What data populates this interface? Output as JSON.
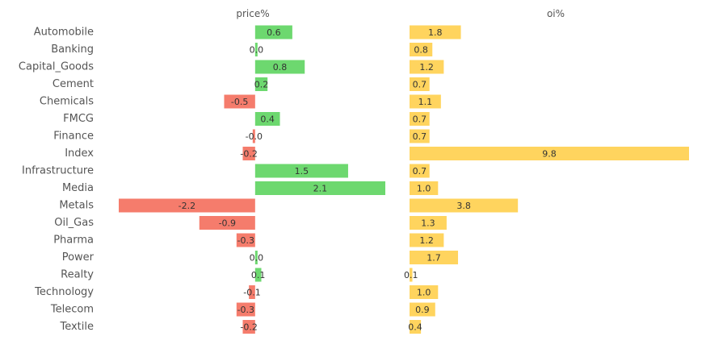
{
  "chart_data": {
    "type": "bar",
    "orientation": "horizontal",
    "categories": [
      "Automobile",
      "Banking",
      "Capital_Goods",
      "Cement",
      "Chemicals",
      "FMCG",
      "Finance",
      "Index",
      "Infrastructure",
      "Media",
      "Metals",
      "Oil_Gas",
      "Pharma",
      "Power",
      "Realty",
      "Technology",
      "Telecom",
      "Textile"
    ],
    "panels": [
      {
        "title": "price%",
        "values": [
          0.6,
          0.0,
          0.8,
          0.2,
          -0.5,
          0.4,
          -0.0,
          -0.2,
          1.5,
          2.1,
          -2.2,
          -0.9,
          -0.3,
          0.0,
          0.1,
          -0.1,
          -0.3,
          -0.2
        ],
        "value_labels": [
          "0.6",
          "0.0",
          "0.8",
          "0.2",
          "-0.5",
          "0.4",
          "-0.0",
          "-0.2",
          "1.5",
          "2.1",
          "-2.2",
          "-0.9",
          "-0.3",
          "0.0",
          "0.1",
          "-0.1",
          "-0.3",
          "-0.2"
        ],
        "positive_color": "#6dd86f",
        "negative_color": "#f57c6c",
        "xlim": [
          -2.2,
          2.1
        ]
      },
      {
        "title": "oi%",
        "values": [
          1.8,
          0.8,
          1.2,
          0.7,
          1.1,
          0.7,
          0.7,
          9.8,
          0.7,
          1.0,
          3.8,
          1.3,
          1.2,
          1.7,
          0.1,
          1.0,
          0.9,
          0.4
        ],
        "value_labels": [
          "1.8",
          "0.8",
          "1.2",
          "0.7",
          "1.1",
          "0.7",
          "0.7",
          "9.8",
          "0.7",
          "1.0",
          "3.8",
          "1.3",
          "1.2",
          "1.7",
          "0.1",
          "1.0",
          "0.9",
          "0.4"
        ],
        "color": "#ffd45e",
        "xlim": [
          0,
          9.8
        ]
      }
    ],
    "grid": false,
    "legend": "none"
  }
}
